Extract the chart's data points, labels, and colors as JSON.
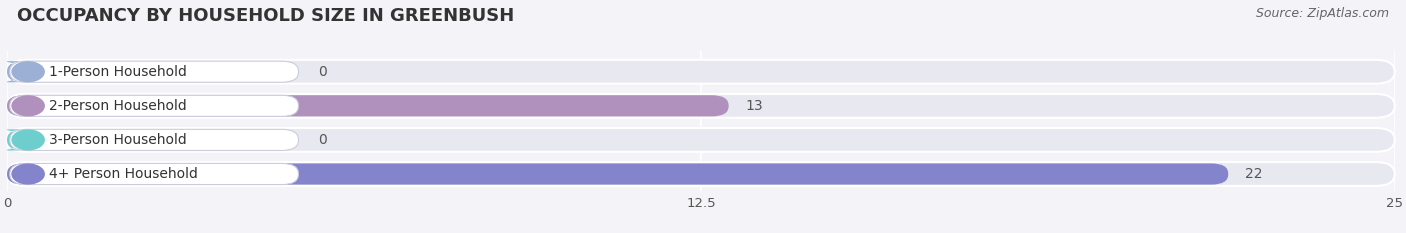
{
  "title": "OCCUPANCY BY HOUSEHOLD SIZE IN GREENBUSH",
  "source": "Source: ZipAtlas.com",
  "categories": [
    "1-Person Household",
    "2-Person Household",
    "3-Person Household",
    "4+ Person Household"
  ],
  "values": [
    0,
    13,
    0,
    22
  ],
  "bar_colors": [
    "#9bb0d4",
    "#b090bc",
    "#6ecece",
    "#8484cc"
  ],
  "row_bg_color": "#e8e8f0",
  "bg_color": "#f4f4f8",
  "xlim": [
    0,
    25
  ],
  "xticks": [
    0,
    12.5,
    25
  ],
  "title_fontsize": 13,
  "source_fontsize": 9,
  "label_fontsize": 10,
  "value_fontsize": 10,
  "value_color": "#555555",
  "title_color": "#333333",
  "source_color": "#666666",
  "label_color": "#333333"
}
